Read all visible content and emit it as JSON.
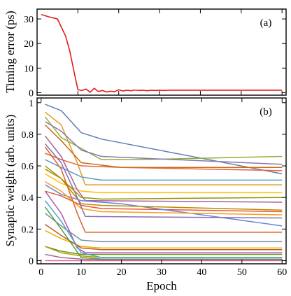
{
  "chart_data": [
    {
      "type": "line",
      "panel_label": "(a)",
      "ylabel": "Timing error (ps)",
      "xlim": [
        0,
        61
      ],
      "ylim": [
        -1,
        34
      ],
      "yticks": [
        0,
        10,
        20,
        30
      ],
      "xticks": [
        0,
        10,
        20,
        30,
        40,
        50,
        60
      ],
      "show_xtick_labels": false,
      "grid": false,
      "series": [
        {
          "color": "#e41a1c",
          "x": [
            1,
            2,
            3,
            4,
            5,
            6,
            7,
            8,
            9,
            10,
            11,
            12,
            13,
            14,
            15,
            16,
            17,
            18,
            19,
            20,
            21,
            22,
            23,
            24,
            25,
            26,
            27,
            28,
            29,
            30,
            31,
            32,
            33,
            34,
            35,
            36,
            37,
            38,
            39,
            40,
            41,
            42,
            43,
            44,
            45,
            46,
            47,
            48,
            49,
            50,
            51,
            52,
            53,
            54,
            55,
            56,
            57,
            58,
            59,
            60
          ],
          "y": [
            31.8,
            31.3,
            30.8,
            30.4,
            30.0,
            26.5,
            23.0,
            17.0,
            9.0,
            1.2,
            0.9,
            1.5,
            0.2,
            1.8,
            0.5,
            0.9,
            0.3,
            0.6,
            0.4,
            1.2,
            0.7,
            1.0,
            0.8,
            1.1,
            0.9,
            1.0,
            0.8,
            1.0,
            0.9,
            1.0,
            0.9,
            1.0,
            1.0,
            1.0,
            1.0,
            1.0,
            1.0,
            1.0,
            1.0,
            1.0,
            1.0,
            1.0,
            1.0,
            1.0,
            1.0,
            1.0,
            1.0,
            1.0,
            1.0,
            1.0,
            1.0,
            1.0,
            1.0,
            1.0,
            1.0,
            1.0,
            1.0,
            1.0,
            1.0,
            1.0
          ]
        }
      ]
    },
    {
      "type": "line",
      "panel_label": "(b)",
      "xlabel": "Epoch",
      "ylabel": "Synaptic weight (arb. units)",
      "xlim": [
        -1,
        61
      ],
      "ylim": [
        -0.02,
        1.03
      ],
      "yticks": [
        0,
        0.2,
        0.4,
        0.6,
        0.8,
        1
      ],
      "xticks": [
        0,
        10,
        20,
        30,
        40,
        50,
        60
      ],
      "grid": false,
      "series": [
        {
          "color": "#5e81b5",
          "x": [
            1,
            5,
            10,
            15,
            60
          ],
          "y": [
            0.99,
            0.95,
            0.81,
            0.77,
            0.55
          ]
        },
        {
          "color": "#e19c24",
          "x": [
            1,
            5,
            9,
            11,
            60
          ],
          "y": [
            0.94,
            0.86,
            0.62,
            0.48,
            0.48
          ]
        },
        {
          "color": "#8fb032",
          "x": [
            1,
            5,
            15,
            25,
            60
          ],
          "y": [
            0.91,
            0.78,
            0.64,
            0.64,
            0.66
          ]
        },
        {
          "color": "#eb6235",
          "x": [
            1,
            5,
            10,
            20,
            60
          ],
          "y": [
            0.68,
            0.64,
            0.6,
            0.59,
            0.57
          ]
        },
        {
          "color": "#8778b3",
          "x": [
            1,
            5,
            10,
            15,
            60
          ],
          "y": [
            0.88,
            0.82,
            0.7,
            0.66,
            0.61
          ]
        },
        {
          "color": "#c56e1a",
          "x": [
            1,
            5,
            10,
            20,
            60
          ],
          "y": [
            0.86,
            0.76,
            0.62,
            0.59,
            0.59
          ]
        },
        {
          "color": "#5d9ec7",
          "x": [
            1,
            5,
            10,
            15,
            60
          ],
          "y": [
            0.64,
            0.59,
            0.53,
            0.51,
            0.51
          ]
        },
        {
          "color": "#ffbf00",
          "x": [
            1,
            5,
            10,
            15,
            60
          ],
          "y": [
            0.55,
            0.49,
            0.44,
            0.43,
            0.43
          ]
        },
        {
          "color": "#a5609d",
          "x": [
            1,
            5,
            9,
            11,
            60
          ],
          "y": [
            0.79,
            0.66,
            0.45,
            0.38,
            0.37
          ]
        },
        {
          "color": "#929600",
          "x": [
            1,
            5,
            10,
            15,
            60
          ],
          "y": [
            0.58,
            0.52,
            0.4,
            0.39,
            0.4
          ]
        },
        {
          "color": "#e95536",
          "x": [
            1,
            5,
            10,
            15,
            60
          ],
          "y": [
            0.44,
            0.41,
            0.35,
            0.33,
            0.31
          ]
        },
        {
          "color": "#6685d9",
          "x": [
            1,
            5,
            10,
            20,
            60
          ],
          "y": [
            0.48,
            0.42,
            0.38,
            0.36,
            0.22
          ]
        },
        {
          "color": "#f89f13",
          "x": [
            1,
            5,
            10,
            15,
            60
          ],
          "y": [
            0.5,
            0.44,
            0.33,
            0.31,
            0.29
          ]
        },
        {
          "color": "#bc8b00",
          "x": [
            1,
            5,
            10,
            15,
            60
          ],
          "y": [
            0.6,
            0.52,
            0.36,
            0.35,
            0.32
          ]
        },
        {
          "color": "#8a6fb0",
          "x": [
            1,
            5,
            9,
            11,
            60
          ],
          "y": [
            0.74,
            0.62,
            0.4,
            0.28,
            0.27
          ]
        },
        {
          "color": "#d9622b",
          "x": [
            1,
            5,
            9,
            11,
            60
          ],
          "y": [
            0.72,
            0.58,
            0.3,
            0.18,
            0.18
          ]
        },
        {
          "color": "#7a8f9e",
          "x": [
            1,
            5,
            10,
            15,
            60
          ],
          "y": [
            0.3,
            0.22,
            0.13,
            0.12,
            0.12
          ]
        },
        {
          "color": "#e6b000",
          "x": [
            1,
            5,
            10,
            15,
            60
          ],
          "y": [
            0.19,
            0.14,
            0.09,
            0.08,
            0.08
          ]
        },
        {
          "color": "#c1572c",
          "x": [
            1,
            5,
            10,
            15,
            60
          ],
          "y": [
            0.23,
            0.16,
            0.08,
            0.07,
            0.07
          ]
        },
        {
          "color": "#b259a6",
          "x": [
            1,
            5,
            9,
            11,
            60
          ],
          "y": [
            0.44,
            0.3,
            0.08,
            0.05,
            0.05
          ]
        },
        {
          "color": "#6a8f1f",
          "x": [
            1,
            5,
            10,
            15,
            60
          ],
          "y": [
            0.09,
            0.06,
            0.04,
            0.04,
            0.04
          ]
        },
        {
          "color": "#b8a000",
          "x": [
            1,
            5,
            10,
            15,
            60
          ],
          "y": [
            0.09,
            0.05,
            0.03,
            0.02,
            0.02
          ]
        },
        {
          "color": "#4f9fd1",
          "x": [
            1,
            5,
            10,
            15,
            60
          ],
          "y": [
            0.38,
            0.25,
            0.05,
            0.02,
            0.02
          ]
        },
        {
          "color": "#55a03c",
          "x": [
            1,
            5,
            10,
            15,
            60
          ],
          "y": [
            0.34,
            0.2,
            0.02,
            0.01,
            0.01
          ]
        },
        {
          "color": "#9e6c9b",
          "x": [
            1,
            5,
            10,
            15,
            60
          ],
          "y": [
            0.04,
            0.02,
            0.01,
            0.005,
            0.005
          ]
        },
        {
          "color": "#e0679b",
          "x": [
            1,
            5,
            10,
            60
          ],
          "y": [
            0.0,
            0.0,
            0.0,
            0.0
          ]
        }
      ]
    }
  ]
}
